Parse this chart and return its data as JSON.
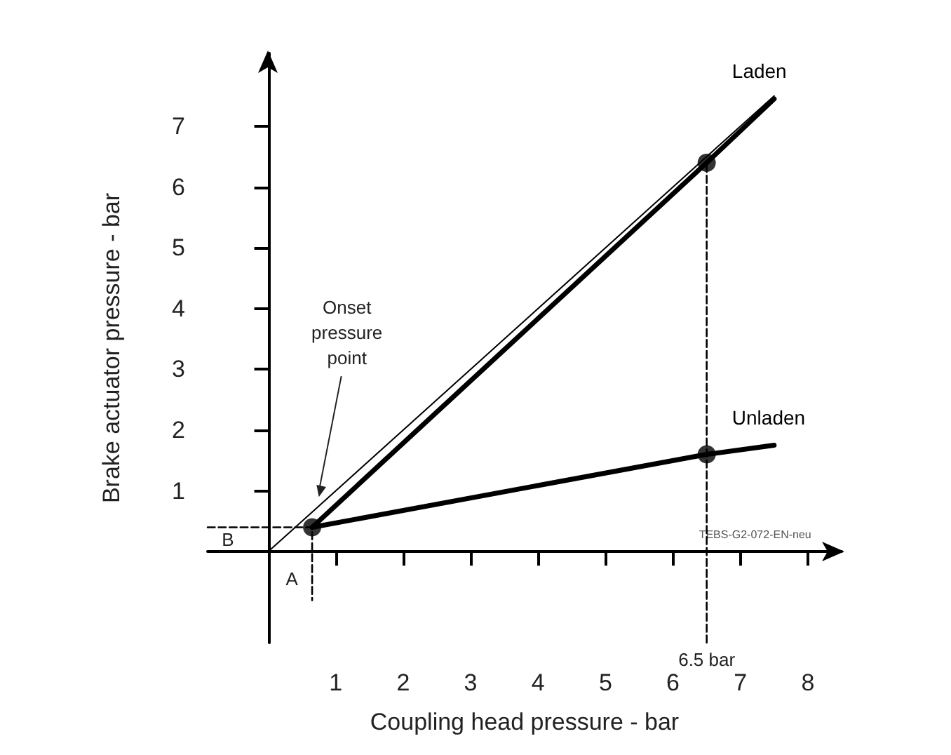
{
  "chart_data": {
    "type": "line",
    "xlabel": "Coupling head pressure - bar",
    "ylabel": "Brake actuator pressure - bar",
    "xlim": [
      -0.9,
      8.5
    ],
    "ylim": [
      -1.5,
      8.2
    ],
    "xticks": [
      1,
      2,
      3,
      4,
      5,
      6,
      7,
      8
    ],
    "yticks": [
      1,
      2,
      3,
      4,
      5,
      6,
      7
    ],
    "grid": false,
    "legend": false,
    "marker": "none",
    "line_style": "solid",
    "series": [
      {
        "name": "Laden",
        "color": "#000000",
        "x": [
          0.65,
          6.5,
          7.5
        ],
        "values": [
          0.4,
          6.4,
          7.45
        ]
      },
      {
        "name": "Unladen",
        "color": "#000000",
        "x": [
          0.65,
          6.5,
          7.5
        ],
        "values": [
          0.4,
          1.6,
          1.75
        ]
      },
      {
        "color": "#000000",
        "x": [
          0,
          7.5
        ],
        "values": [
          0,
          7.5
        ]
      },
      {
        "color": "#000000",
        "line_style": "dashed",
        "x": [
          -0.9,
          0.65,
          0.65
        ],
        "values": [
          0.4,
          0.4,
          -0.8
        ]
      },
      {
        "color": "#000000",
        "line_style": "dashed",
        "x": [
          6.5,
          6.5
        ],
        "values": [
          -1.5,
          6.4
        ]
      },
      {
        "type": "scatter",
        "color": "#000000",
        "marker": "circle",
        "x": [
          0.65,
          6.5,
          6.5
        ],
        "values": [
          0.4,
          6.4,
          1.6
        ]
      }
    ],
    "annotations": [
      {
        "text": "Onset pressure point",
        "x": 0.75,
        "y": 0.9
      },
      "A",
      "B",
      "6.5 bar",
      "TEBS-G2-072-EN-neu"
    ]
  }
}
